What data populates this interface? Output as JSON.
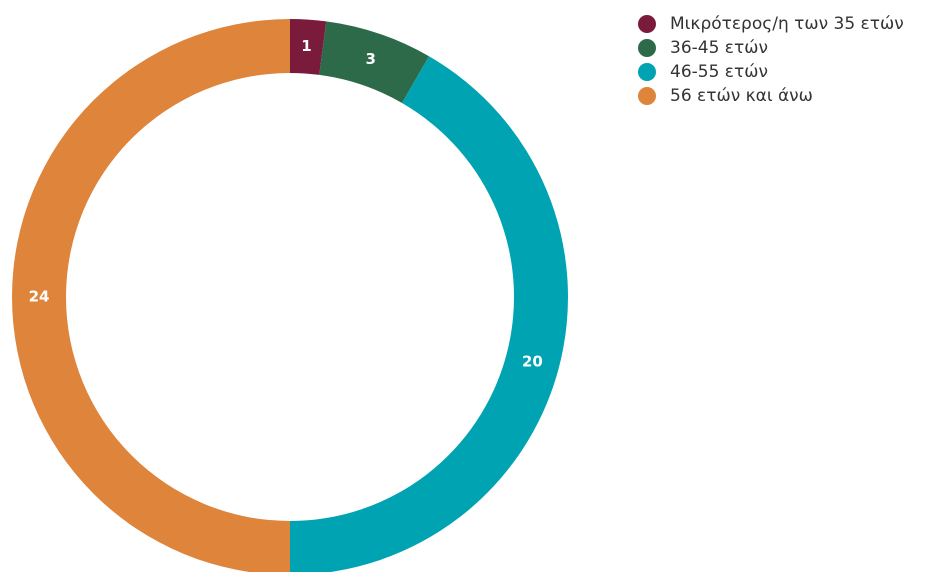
{
  "chart_data": {
    "type": "donut",
    "categories": [
      "Μικρότερος/η των 35 ετών",
      "36-45 ετών",
      "46-55 ετών",
      "56 ετών και άνω"
    ],
    "values": [
      1,
      3,
      20,
      24
    ],
    "colors": [
      "#7b1b3b",
      "#2d6a4a",
      "#00a3b1",
      "#de843b"
    ],
    "legend": "top-right"
  }
}
